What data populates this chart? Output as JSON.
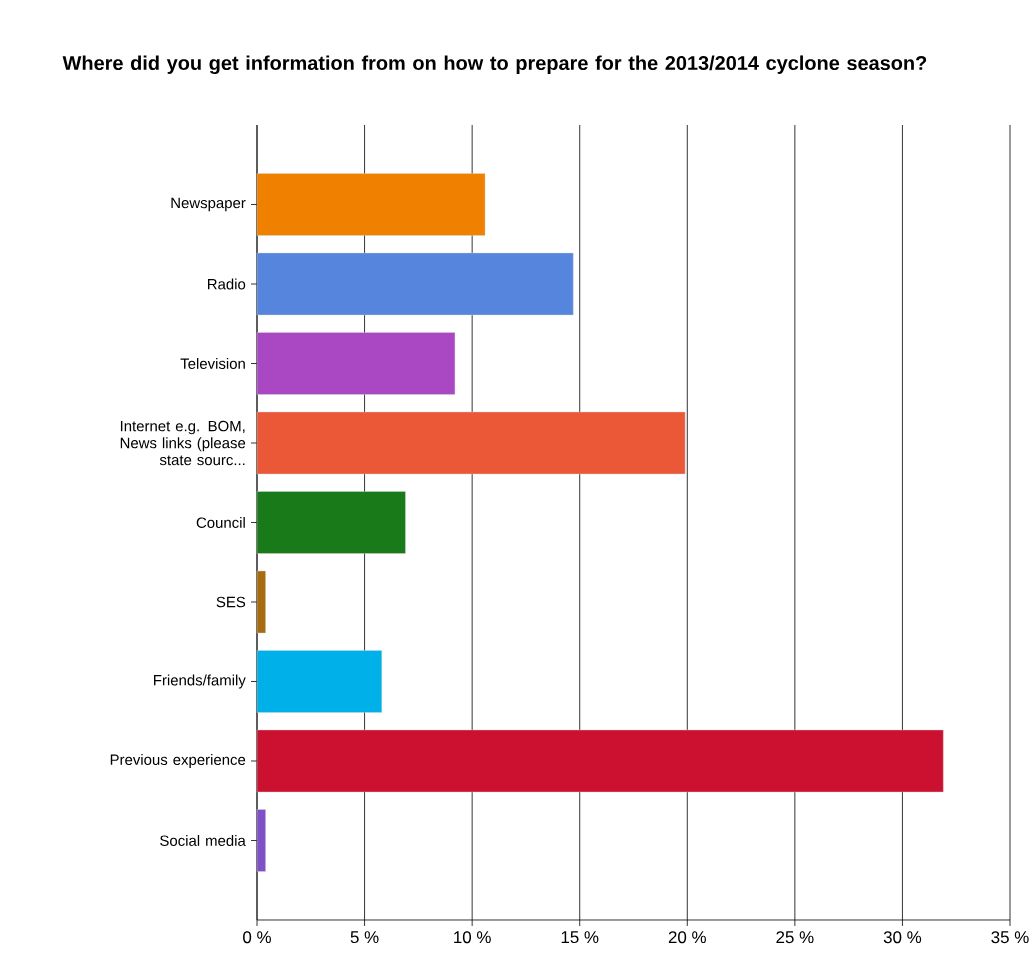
{
  "chart_data": {
    "type": "bar",
    "orientation": "horizontal",
    "title": "Where did you get information from on how to prepare for the 2013/2014 cyclone season?",
    "categories": [
      "Newspaper",
      "Radio",
      "Television",
      "Internet e.g. BOM, News links (please state sourc...",
      "Council",
      "SES",
      "Friends/family",
      "Previous experience",
      "Social media"
    ],
    "values": [
      10.6,
      14.7,
      9.2,
      19.9,
      6.9,
      0.4,
      5.8,
      31.9,
      0.4
    ],
    "colors": [
      "#f08000",
      "#5585dc",
      "#aa48c4",
      "#ea5838",
      "#187a18",
      "#a86c10",
      "#00b0e8",
      "#cc1030",
      "#8050c8"
    ],
    "xlim": [
      0,
      35
    ],
    "xticks": [
      {
        "value": 0,
        "label": "0 %"
      },
      {
        "value": 5,
        "label": "5 %"
      },
      {
        "value": 10,
        "label": "10 %"
      },
      {
        "value": 15,
        "label": "15 %"
      },
      {
        "value": 20,
        "label": "20 %"
      },
      {
        "value": 25,
        "label": "25 %"
      },
      {
        "value": 30,
        "label": "30 %"
      },
      {
        "value": 35,
        "label": "35 %"
      }
    ],
    "grid": "x"
  }
}
